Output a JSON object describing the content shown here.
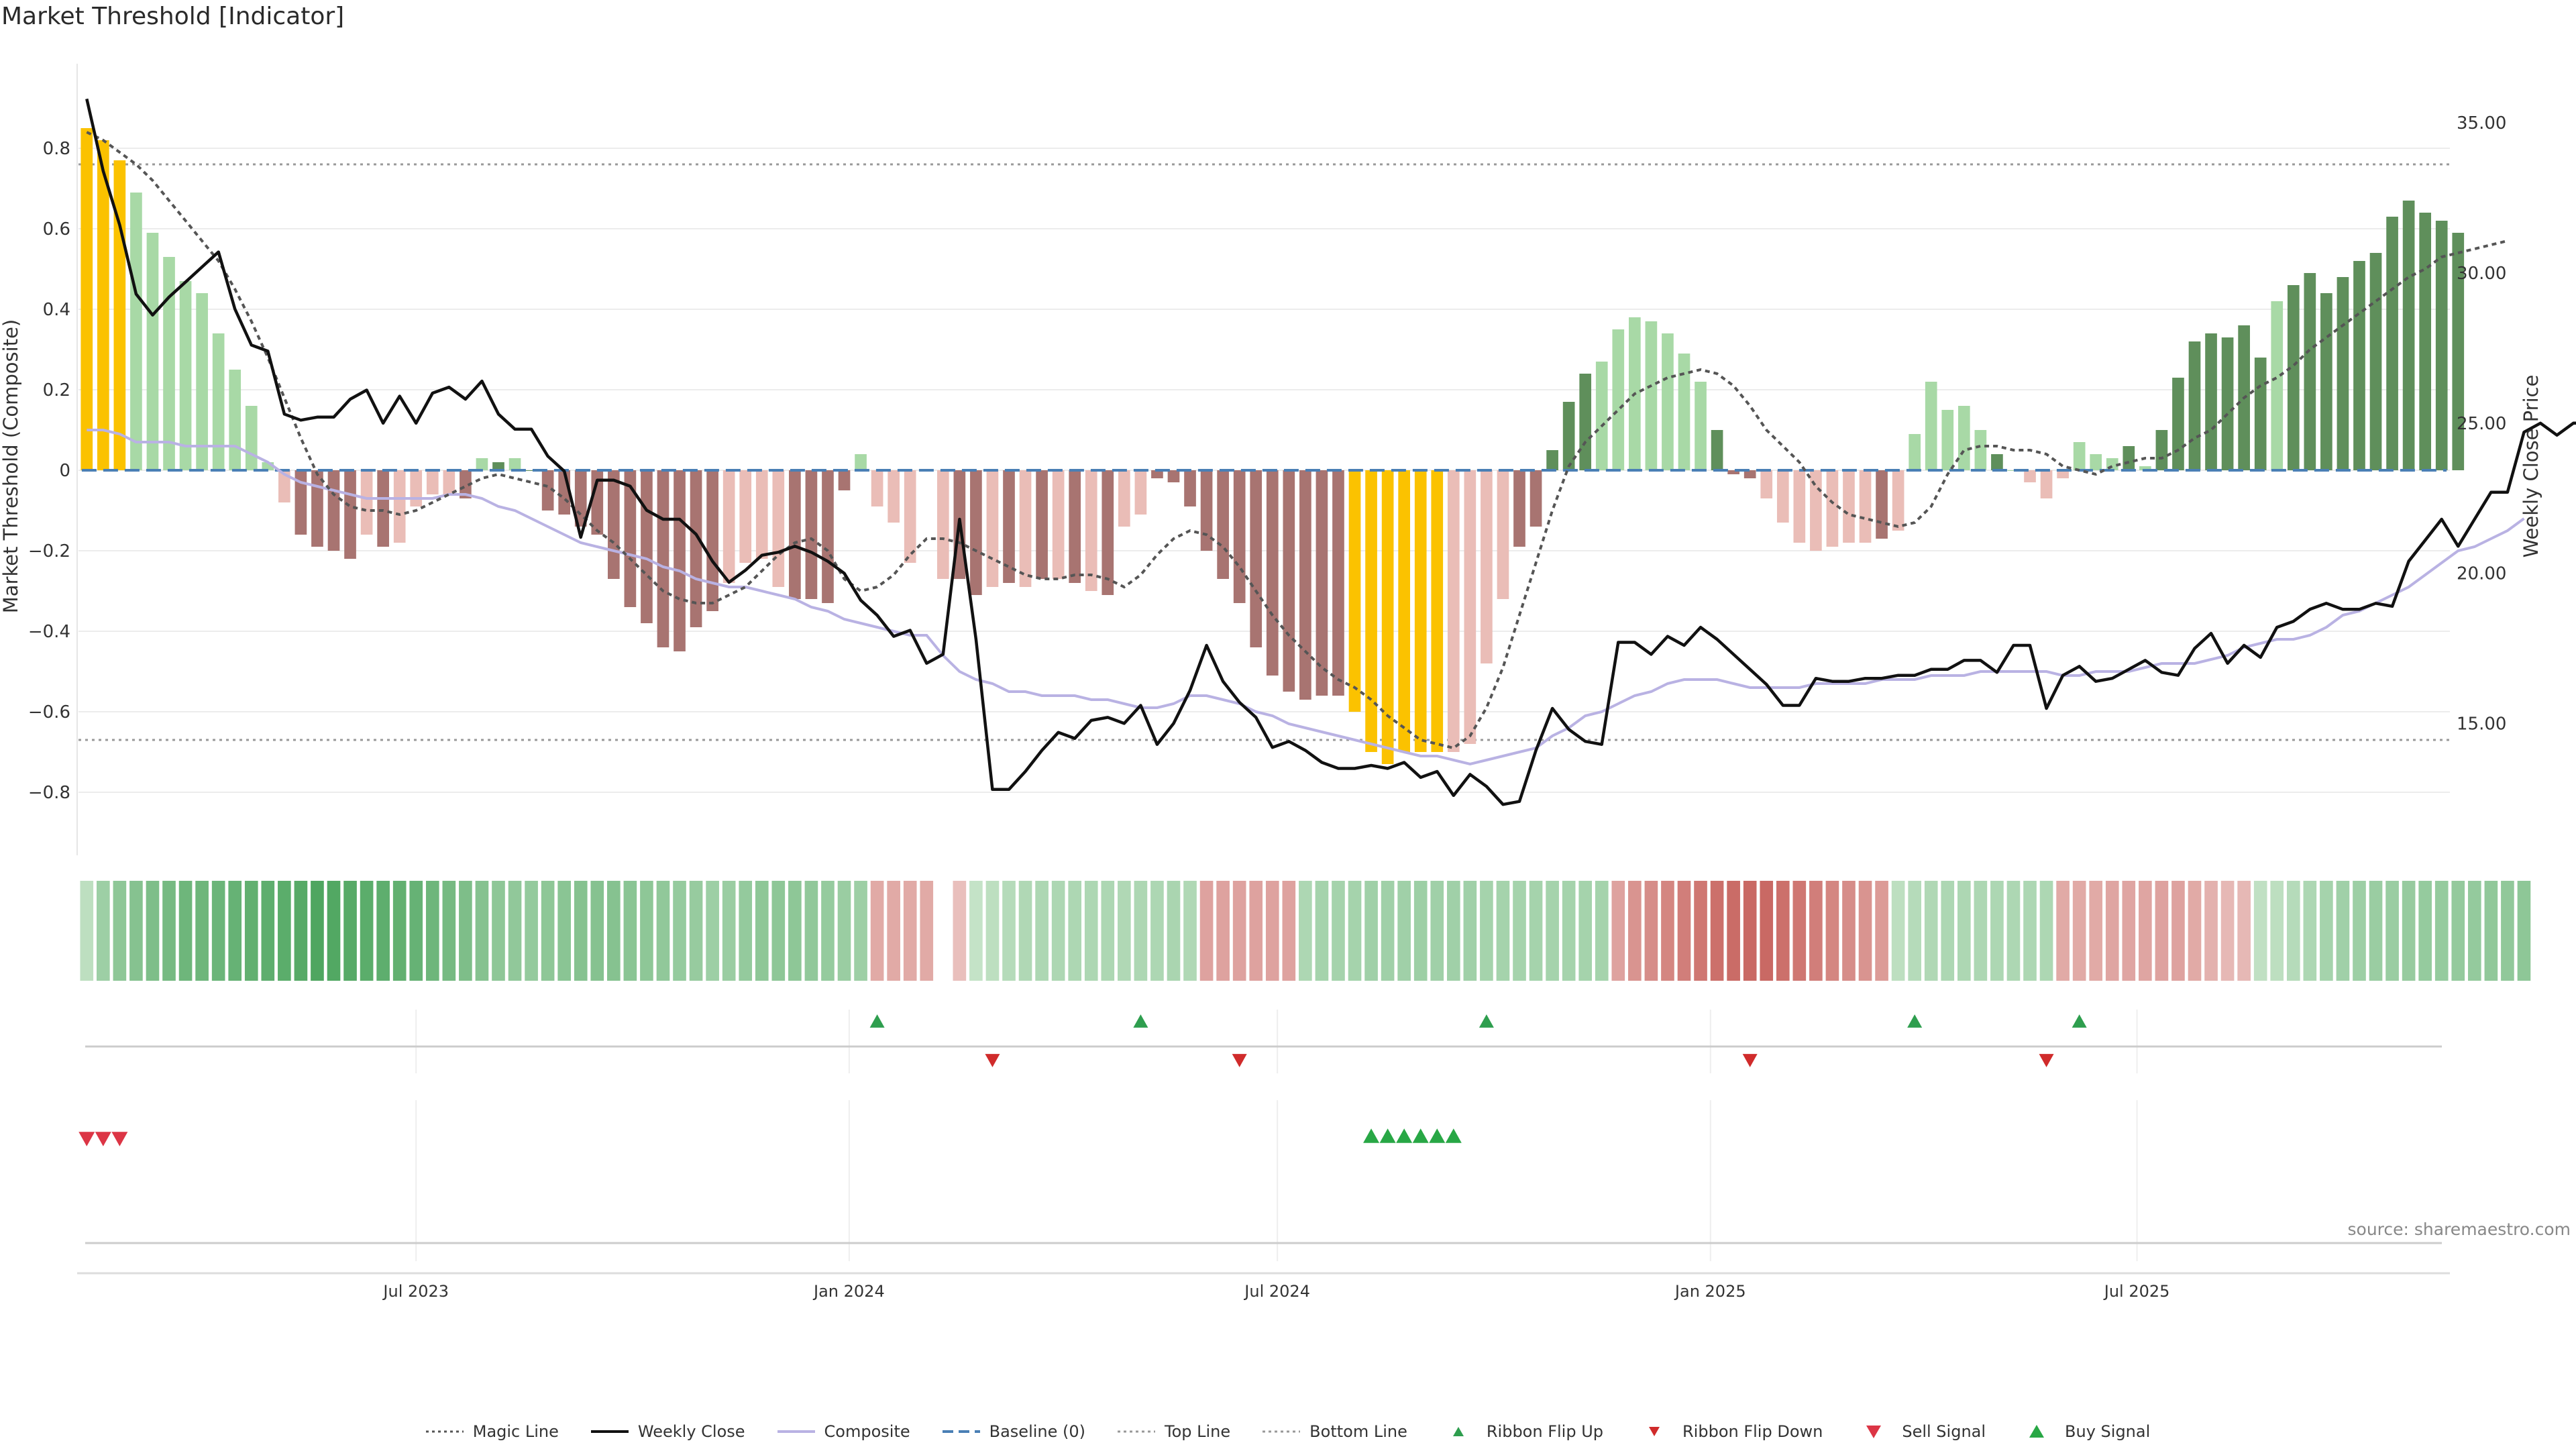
{
  "title": "Market Threshold [Indicator]",
  "source": "source: sharemaestro.com",
  "colors": {
    "magic": "#555555",
    "close": "#111111",
    "composite": "#b9b2e3",
    "baseline": "#4a7fb5",
    "guide": "#888888",
    "extreme": "#fbc200",
    "strong_pos": "#5f8f5b",
    "weak_pos": "#a8d9a6",
    "strong_neg": "#a87471",
    "weak_neg": "#eabdb7",
    "flip_up": "#2e9e4e",
    "flip_down": "#d02b2b",
    "sell": "#dc3545",
    "buy": "#28a745"
  },
  "legend": [
    {
      "label": "Magic Line",
      "kind": "dotted-line",
      "color": "#555555"
    },
    {
      "label": "Weekly Close",
      "kind": "line",
      "color": "#111111"
    },
    {
      "label": "Composite",
      "kind": "line",
      "color": "#b9b2e3"
    },
    {
      "label": "Baseline (0)",
      "kind": "dashed-line",
      "color": "#4a7fb5"
    },
    {
      "label": "Top Line",
      "kind": "dotted-line",
      "color": "#999999"
    },
    {
      "label": "Bottom Line",
      "kind": "dotted-line",
      "color": "#999999"
    },
    {
      "label": "Ribbon Flip Up",
      "kind": "tri-up-small",
      "color": "#2e9e4e"
    },
    {
      "label": "Ribbon Flip Down",
      "kind": "tri-down-small",
      "color": "#d02b2b"
    },
    {
      "label": "Sell Signal",
      "kind": "tri-down",
      "color": "#dc3545"
    },
    {
      "label": "Buy Signal",
      "kind": "tri-up",
      "color": "#28a745"
    }
  ],
  "chart_data": {
    "type": "bar",
    "ylabel": "Market Threshold (Composite)",
    "y2label": "Weekly Close Price",
    "ylim": [
      -0.94,
      0.96
    ],
    "y2lim": [
      10.83,
      36.3
    ],
    "yticks": [
      -0.8,
      -0.6,
      -0.4,
      -0.2,
      0,
      0.2,
      0.4,
      0.6,
      0.8
    ],
    "ytick_labels": [
      "−0.8",
      "−0.6",
      "−0.4",
      "−0.2",
      "0",
      "0.2",
      "0.4",
      "0.6",
      "0.8"
    ],
    "y2ticks": [
      15,
      20,
      25,
      30,
      35
    ],
    "y2tick_labels": [
      "15.00",
      "20.00",
      "25.00",
      "30.00",
      "35.00"
    ],
    "xlim": [
      0,
      144
    ],
    "xticks": [
      {
        "label": "Jul 2023",
        "x": 20
      },
      {
        "label": "Jan 2024",
        "x": 46.3
      },
      {
        "label": "Jul 2024",
        "x": 72.3
      },
      {
        "label": "Jan 2025",
        "x": 98.6
      },
      {
        "label": "Jul 2025",
        "x": 124.5
      }
    ],
    "top_line": 0.76,
    "bottom_line": -0.67,
    "grid": true,
    "bar_values": [
      0.85,
      0.82,
      0.77,
      0.69,
      0.59,
      0.53,
      0.47,
      0.44,
      0.34,
      0.25,
      0.16,
      0.02,
      -0.08,
      -0.16,
      -0.19,
      -0.2,
      -0.22,
      -0.16,
      -0.19,
      -0.18,
      -0.09,
      -0.06,
      -0.06,
      -0.07,
      0.03,
      0.02,
      0.03,
      0,
      -0.1,
      -0.11,
      -0.14,
      -0.16,
      -0.27,
      -0.34,
      -0.38,
      -0.44,
      -0.45,
      -0.39,
      -0.35,
      -0.28,
      -0.23,
      -0.22,
      -0.29,
      -0.32,
      -0.32,
      -0.33,
      -0.05,
      0.04,
      -0.09,
      -0.13,
      -0.23,
      0,
      -0.27,
      -0.27,
      -0.31,
      -0.29,
      -0.28,
      -0.29,
      -0.27,
      -0.27,
      -0.28,
      -0.3,
      -0.31,
      -0.14,
      -0.11,
      -0.02,
      -0.03,
      -0.09,
      -0.2,
      -0.27,
      -0.33,
      -0.44,
      -0.51,
      -0.55,
      -0.57,
      -0.56,
      -0.56,
      -0.6,
      -0.7,
      -0.73,
      -0.7,
      -0.7,
      -0.7,
      -0.7,
      -0.68,
      -0.48,
      -0.32,
      -0.19,
      -0.14,
      0.05,
      0.17,
      0.24,
      0.27,
      0.35,
      0.38,
      0.37,
      0.34,
      0.29,
      0.22,
      0.1,
      -0.01,
      -0.02,
      -0.07,
      -0.13,
      -0.18,
      -0.2,
      -0.19,
      -0.18,
      -0.18,
      -0.17,
      -0.15,
      0.09,
      0.22,
      0.15,
      0.16,
      0.1,
      0.04,
      0,
      -0.03,
      -0.07,
      -0.02,
      0.07,
      0.04,
      0.03,
      0.06,
      0.01,
      0.1,
      0.23,
      0.32,
      0.34,
      0.33,
      0.36,
      0.28,
      0.42,
      0.46,
      0.49,
      0.44,
      0.48,
      0.52,
      0.54,
      0.63,
      0.67,
      0.64,
      0.62,
      0.59
    ],
    "bar_classes": "YYYWWWWWWWWWWSSSSWSWWWWSWSWSSSSSSSSSSSSWWWWSSSSWWWWSWSSWSWSWSWSWWSSSSSSSSSSSSYYYYYYWWWWSSSSSWWWWWWWSSSWWWWWWWSWWWWWWSWWWWWWWSWSSSSSSSWSSSSSSSSSSSWWWW",
    "close": [
      35.8,
      33.4,
      31.6,
      29.3,
      28.6,
      29.2,
      29.7,
      30.2,
      30.7,
      28.8,
      27.6,
      27.4,
      25.3,
      25.1,
      25.2,
      25.2,
      25.8,
      26.1,
      25,
      25.9,
      25,
      26,
      26.2,
      25.8,
      26.4,
      25.3,
      24.8,
      24.8,
      23.9,
      23.4,
      21.2,
      23.1,
      23.1,
      22.9,
      22.1,
      21.8,
      21.8,
      21.3,
      20.4,
      19.7,
      20.1,
      20.6,
      20.7,
      20.9,
      20.7,
      20.4,
      20,
      19.1,
      18.6,
      17.9,
      18.1,
      17,
      17.3,
      21.8,
      17.8,
      12.8,
      12.8,
      13.4,
      14.1,
      14.7,
      14.5,
      15.1,
      15.2,
      15,
      15.6,
      14.3,
      15,
      16.1,
      17.6,
      16.4,
      15.7,
      15.2,
      14.2,
      14.4,
      14.1,
      13.7,
      13.5,
      13.5,
      13.6,
      13.5,
      13.7,
      13.2,
      13.4,
      12.6,
      13.3,
      12.9,
      12.3,
      12.4,
      14.1,
      15.5,
      14.8,
      14.4,
      14.3,
      17.7,
      17.7,
      17.3,
      17.9,
      17.6,
      18.2,
      17.8,
      17.3,
      16.8,
      16.3,
      15.6,
      15.6,
      16.5,
      16.4,
      16.4,
      16.5,
      16.5,
      16.6,
      16.6,
      16.8,
      16.8,
      17.1,
      17.1,
      16.7,
      17.6,
      17.6,
      15.5,
      16.6,
      16.9,
      16.4,
      16.5,
      16.8,
      17.1,
      16.7,
      16.6,
      17.5,
      18,
      17,
      17.6,
      17.2,
      18.2,
      18.4,
      18.8,
      19,
      18.8,
      18.8,
      19,
      18.9,
      20.4,
      21.1,
      21.8,
      20.9,
      21.8,
      22.7,
      22.7,
      24.7,
      25,
      24.6,
      25,
      25
    ],
    "composite": [
      0.1,
      0.1,
      0.09,
      0.07,
      0.07,
      0.07,
      0.06,
      0.06,
      0.06,
      0.06,
      0.04,
      0.02,
      -0.01,
      -0.03,
      -0.04,
      -0.05,
      -0.06,
      -0.07,
      -0.07,
      -0.07,
      -0.07,
      -0.07,
      -0.06,
      -0.06,
      -0.07,
      -0.09,
      -0.1,
      -0.12,
      -0.14,
      -0.16,
      -0.18,
      -0.19,
      -0.2,
      -0.21,
      -0.22,
      -0.24,
      -0.25,
      -0.27,
      -0.28,
      -0.29,
      -0.29,
      -0.3,
      -0.31,
      -0.32,
      -0.34,
      -0.35,
      -0.37,
      -0.38,
      -0.39,
      -0.4,
      -0.41,
      -0.41,
      -0.46,
      -0.5,
      -0.52,
      -0.53,
      -0.55,
      -0.55,
      -0.56,
      -0.56,
      -0.56,
      -0.57,
      -0.57,
      -0.58,
      -0.59,
      -0.59,
      -0.58,
      -0.56,
      -0.56,
      -0.57,
      -0.58,
      -0.6,
      -0.61,
      -0.63,
      -0.64,
      -0.65,
      -0.66,
      -0.67,
      -0.68,
      -0.69,
      -0.7,
      -0.71,
      -0.71,
      -0.72,
      -0.73,
      -0.72,
      -0.71,
      -0.7,
      -0.69,
      -0.66,
      -0.64,
      -0.61,
      -0.6,
      -0.58,
      -0.56,
      -0.55,
      -0.53,
      -0.52,
      -0.52,
      -0.52,
      -0.53,
      -0.54,
      -0.54,
      -0.54,
      -0.54,
      -0.53,
      -0.53,
      -0.53,
      -0.53,
      -0.52,
      -0.52,
      -0.52,
      -0.51,
      -0.51,
      -0.51,
      -0.5,
      -0.5,
      -0.5,
      -0.5,
      -0.5,
      -0.51,
      -0.51,
      -0.5,
      -0.5,
      -0.5,
      -0.49,
      -0.48,
      -0.48,
      -0.48,
      -0.47,
      -0.46,
      -0.44,
      -0.43,
      -0.42,
      -0.42,
      -0.41,
      -0.39,
      -0.36,
      -0.35,
      -0.33,
      -0.31,
      -0.29,
      -0.26,
      -0.23,
      -0.2,
      -0.19,
      -0.17,
      -0.15,
      -0.12
    ],
    "magic": [
      0.84,
      0.82,
      0.79,
      0.76,
      0.72,
      0.67,
      0.62,
      0.57,
      0.52,
      0.45,
      0.37,
      0.28,
      0.18,
      0.08,
      -0.01,
      -0.06,
      -0.09,
      -0.1,
      -0.1,
      -0.11,
      -0.1,
      -0.08,
      -0.06,
      -0.04,
      -0.02,
      -0.01,
      -0.02,
      -0.03,
      -0.04,
      -0.07,
      -0.11,
      -0.15,
      -0.18,
      -0.22,
      -0.26,
      -0.3,
      -0.32,
      -0.33,
      -0.33,
      -0.31,
      -0.29,
      -0.25,
      -0.21,
      -0.18,
      -0.17,
      -0.2,
      -0.27,
      -0.3,
      -0.29,
      -0.26,
      -0.21,
      -0.17,
      -0.17,
      -0.18,
      -0.2,
      -0.22,
      -0.24,
      -0.26,
      -0.27,
      -0.27,
      -0.26,
      -0.26,
      -0.27,
      -0.29,
      -0.26,
      -0.21,
      -0.17,
      -0.15,
      -0.16,
      -0.19,
      -0.24,
      -0.3,
      -0.36,
      -0.41,
      -0.45,
      -0.49,
      -0.52,
      -0.54,
      -0.57,
      -0.61,
      -0.64,
      -0.67,
      -0.68,
      -0.69,
      -0.66,
      -0.59,
      -0.49,
      -0.36,
      -0.23,
      -0.1,
      0.01,
      0.07,
      0.11,
      0.15,
      0.19,
      0.21,
      0.23,
      0.24,
      0.25,
      0.24,
      0.21,
      0.16,
      0.1,
      0.06,
      0.02,
      -0.04,
      -0.08,
      -0.11,
      -0.12,
      -0.13,
      -0.14,
      -0.13,
      -0.09,
      -0.01,
      0.05,
      0.06,
      0.06,
      0.05,
      0.05,
      0.04,
      0.01,
      0,
      -0.01,
      0.01,
      0.02,
      0.03,
      0.03,
      0.05,
      0.08,
      0.1,
      0.14,
      0.18,
      0.21,
      0.23,
      0.26,
      0.3,
      0.33,
      0.36,
      0.39,
      0.42,
      0.45,
      0.48,
      0.5,
      0.53,
      0.54,
      0.55,
      0.56,
      0.57
    ],
    "ribbon": [
      0.2,
      0.4,
      0.5,
      0.55,
      0.6,
      0.65,
      0.7,
      0.7,
      0.72,
      0.75,
      0.78,
      0.8,
      0.82,
      0.85,
      0.9,
      0.88,
      0.85,
      0.82,
      0.8,
      0.78,
      0.75,
      0.7,
      0.65,
      0.6,
      0.55,
      0.5,
      0.48,
      0.46,
      0.5,
      0.52,
      0.55,
      0.55,
      0.55,
      0.52,
      0.5,
      0.48,
      0.45,
      0.44,
      0.4,
      0.42,
      0.46,
      0.5,
      0.5,
      0.5,
      0.48,
      0.45,
      0.42,
      0.4,
      -0.35,
      -0.35,
      -0.35,
      -0.35,
      null,
      -0.2,
      0.15,
      0.2,
      0.25,
      0.28,
      0.3,
      0.3,
      0.3,
      0.3,
      0.3,
      0.28,
      0.3,
      0.3,
      0.32,
      0.28,
      -0.4,
      -0.4,
      -0.4,
      -0.4,
      -0.4,
      -0.4,
      0.3,
      0.35,
      0.35,
      0.35,
      0.38,
      0.38,
      0.38,
      0.4,
      0.38,
      0.38,
      0.38,
      0.35,
      0.35,
      0.35,
      0.35,
      0.35,
      0.35,
      0.35,
      0.35,
      -0.4,
      -0.5,
      -0.55,
      -0.6,
      -0.65,
      -0.7,
      -0.75,
      -0.78,
      -0.8,
      -0.8,
      -0.75,
      -0.7,
      -0.65,
      -0.6,
      -0.55,
      -0.5,
      -0.45,
      0.2,
      0.25,
      0.28,
      0.3,
      0.3,
      0.3,
      0.3,
      0.3,
      0.3,
      0.3,
      -0.35,
      -0.35,
      -0.35,
      -0.38,
      -0.38,
      -0.38,
      -0.4,
      -0.4,
      -0.35,
      -0.3,
      -0.25,
      -0.25,
      0.18,
      0.2,
      0.25,
      0.3,
      0.35,
      0.38,
      0.4,
      0.42,
      0.42,
      0.44,
      0.45,
      0.45,
      0.46,
      0.46,
      0.48,
      0.48,
      0.5
    ],
    "ribbon_flip_up": [
      48,
      64,
      85,
      111,
      121
    ],
    "ribbon_flip_down": [
      55,
      70,
      101,
      119
    ],
    "sell_signals": [
      0,
      1,
      2
    ],
    "buy_signals": [
      78,
      79,
      80,
      81,
      82,
      83
    ]
  }
}
